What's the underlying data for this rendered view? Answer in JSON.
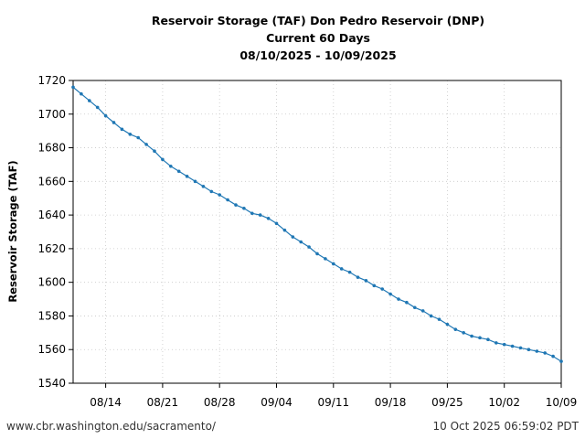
{
  "chart_data": {
    "type": "line",
    "title_lines": [
      "Reservoir Storage (TAF) Don Pedro Reservoir (DNP)",
      "Current 60 Days",
      "08/10/2025 - 10/09/2025"
    ],
    "xlabel": "",
    "ylabel": "Reservoir Storage (TAF)",
    "ylim": [
      1540,
      1720
    ],
    "y_ticks": [
      1540,
      1560,
      1580,
      1600,
      1620,
      1640,
      1660,
      1680,
      1700,
      1720
    ],
    "x_tick_labels": [
      "08/14",
      "08/21",
      "08/28",
      "09/04",
      "09/11",
      "09/18",
      "09/25",
      "10/02",
      "10/09"
    ],
    "x_start_label": "08/10",
    "x_end_label": "10/09",
    "grid": true,
    "line_color": "#1f77b4",
    "x": [
      "08/10",
      "08/11",
      "08/12",
      "08/13",
      "08/14",
      "08/15",
      "08/16",
      "08/17",
      "08/18",
      "08/19",
      "08/20",
      "08/21",
      "08/22",
      "08/23",
      "08/24",
      "08/25",
      "08/26",
      "08/27",
      "08/28",
      "08/29",
      "08/30",
      "08/31",
      "09/01",
      "09/02",
      "09/03",
      "09/04",
      "09/05",
      "09/06",
      "09/07",
      "09/08",
      "09/09",
      "09/10",
      "09/11",
      "09/12",
      "09/13",
      "09/14",
      "09/15",
      "09/16",
      "09/17",
      "09/18",
      "09/19",
      "09/20",
      "09/21",
      "09/22",
      "09/23",
      "09/24",
      "09/25",
      "09/26",
      "09/27",
      "09/28",
      "09/29",
      "09/30",
      "10/01",
      "10/02",
      "10/03",
      "10/04",
      "10/05",
      "10/06",
      "10/07",
      "10/08",
      "10/09"
    ],
    "values": [
      1716,
      1712,
      1708,
      1704,
      1699,
      1695,
      1691,
      1688,
      1686,
      1682,
      1678,
      1673,
      1669,
      1666,
      1663,
      1660,
      1657,
      1654,
      1652,
      1649,
      1646,
      1644,
      1641,
      1640,
      1638,
      1635,
      1631,
      1627,
      1624,
      1621,
      1617,
      1614,
      1611,
      1608,
      1606,
      1603,
      1601,
      1598,
      1596,
      1593,
      1590,
      1588,
      1585,
      1583,
      1580,
      1578,
      1575,
      1572,
      1570,
      1568,
      1567,
      1566,
      1564,
      1563,
      1562,
      1561,
      1560,
      1559,
      1558,
      1556,
      1553
    ]
  },
  "footer": {
    "left": "www.cbr.washington.edu/sacramento/",
    "right": "10 Oct 2025 06:59:02 PDT"
  }
}
